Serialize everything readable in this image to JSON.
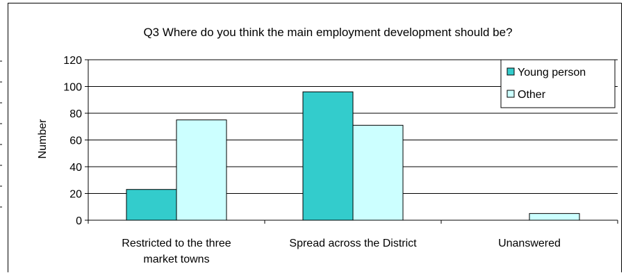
{
  "chart_data": {
    "type": "bar",
    "title": "Q3 Where do you think the main employment development should be?",
    "xlabel": "",
    "ylabel": "Number",
    "ylim": [
      0,
      120
    ],
    "yticks": [
      0,
      20,
      40,
      60,
      80,
      100,
      120
    ],
    "grid": true,
    "legend_position": "top-right",
    "categories": [
      [
        "Restricted to the three",
        "market towns"
      ],
      [
        "Spread across the District"
      ],
      [
        "Unanswered"
      ]
    ],
    "series": [
      {
        "name": "Young person",
        "color": "#33CCCC",
        "values": [
          23,
          96,
          0
        ]
      },
      {
        "name": "Other",
        "color": "#CCFFFF",
        "values": [
          75,
          71,
          5
        ]
      }
    ]
  }
}
